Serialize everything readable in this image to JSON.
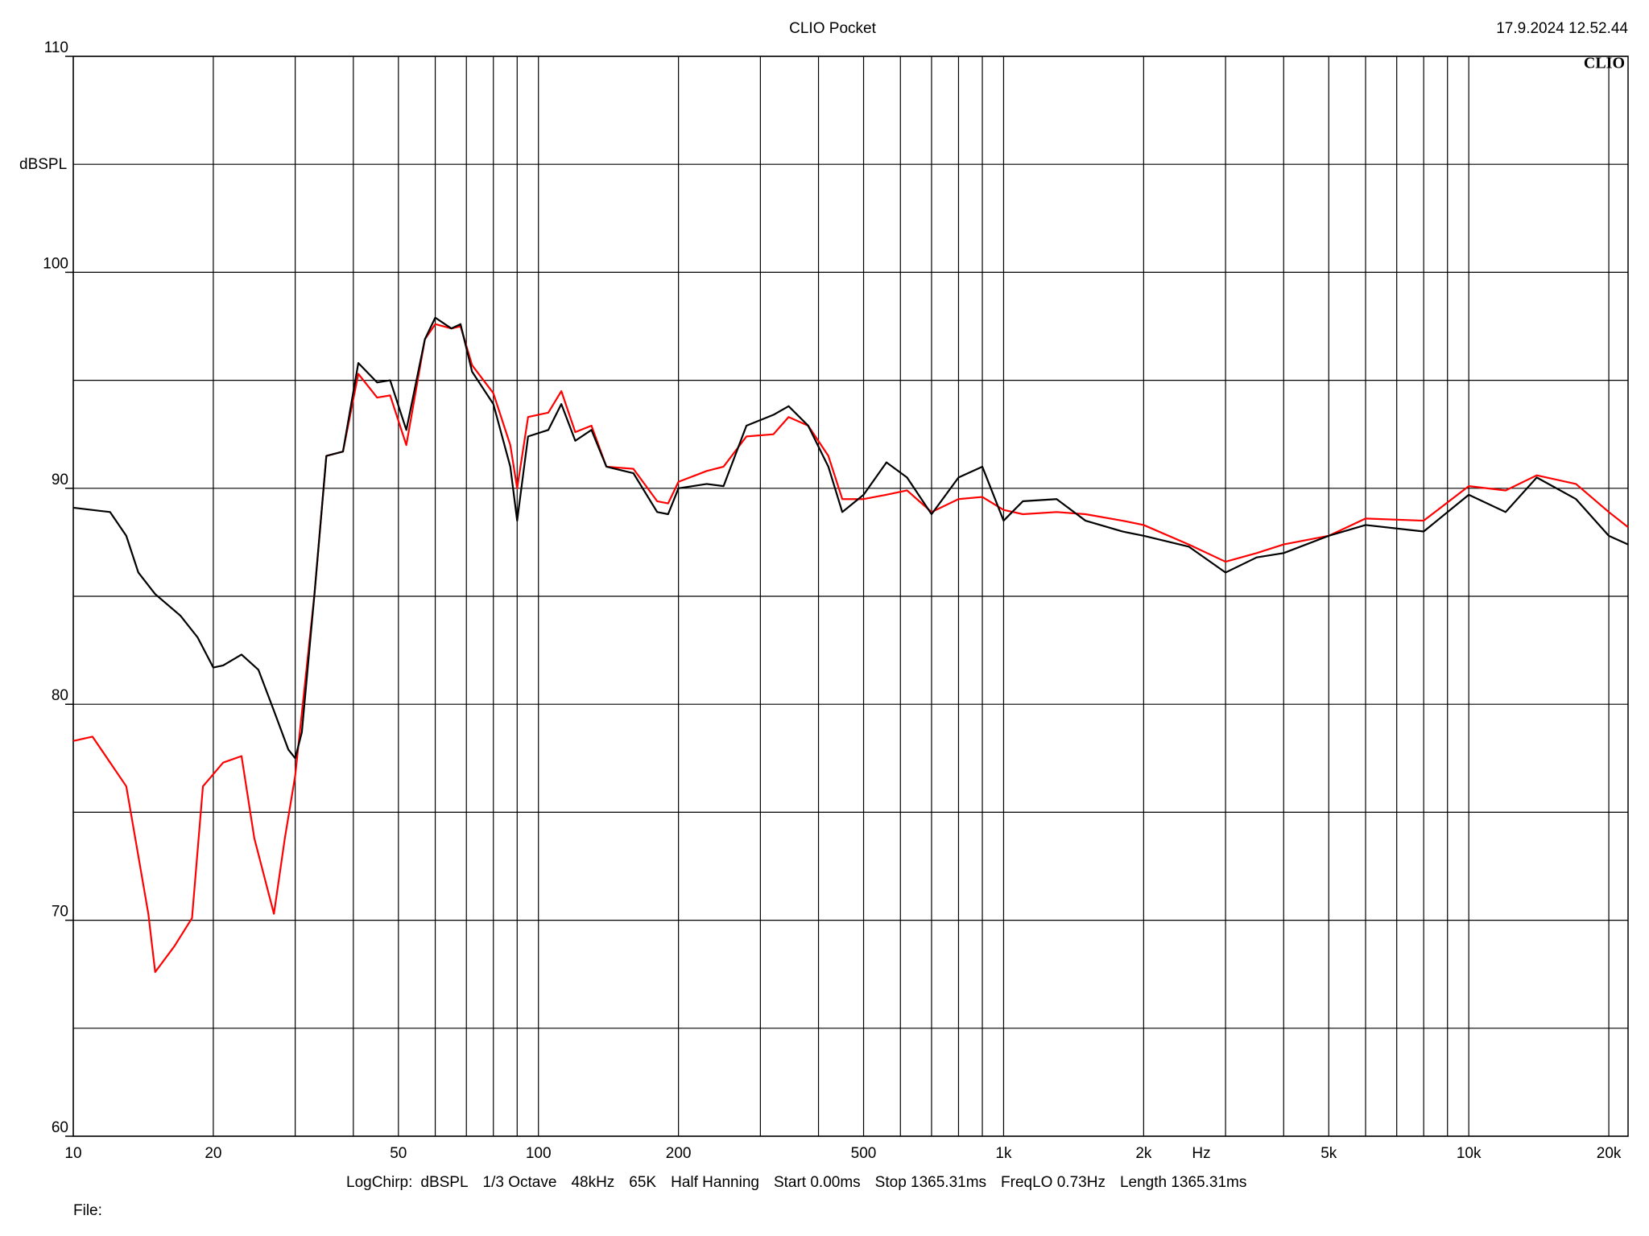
{
  "chart_data": {
    "type": "line",
    "title": "CLIO Pocket",
    "timestamp": "17.9.2024 12.52.44",
    "logo": "CLIO",
    "ylabel": "dBSPL",
    "xlabel": "Hz",
    "xscale": "log",
    "grid": true,
    "xlim": [
      10,
      22000
    ],
    "ylim": [
      60,
      110
    ],
    "xticks": [
      10,
      20,
      50,
      100,
      200,
      500,
      {
        "value": 1000,
        "label": "1k"
      },
      {
        "value": 2000,
        "label": "2k"
      },
      {
        "value": 5000,
        "label": "5k"
      },
      {
        "value": 10000,
        "label": "10k"
      },
      {
        "value": 20000,
        "label": "20k"
      }
    ],
    "xminorticks": [
      30,
      40,
      60,
      70,
      80,
      90,
      300,
      400,
      600,
      700,
      800,
      900,
      3000,
      4000,
      6000,
      7000,
      8000,
      9000
    ],
    "yticks": [
      60,
      70,
      80,
      90,
      100,
      110
    ],
    "yminorticks": [
      65,
      75,
      85,
      95,
      105
    ],
    "series": [
      {
        "color": "#000000",
        "x": [
          10,
          12,
          13,
          13.8,
          15,
          17,
          18.5,
          20,
          21,
          23,
          25,
          27,
          29,
          30,
          31,
          33,
          35,
          38,
          41,
          45,
          48,
          52,
          57,
          60,
          65,
          68,
          72,
          80,
          87,
          90,
          95,
          105,
          112,
          120,
          130,
          140,
          160,
          180,
          190,
          200,
          230,
          250,
          280,
          320,
          345,
          380,
          420,
          450,
          500,
          560,
          620,
          700,
          800,
          900,
          1000,
          1100,
          1300,
          1500,
          1800,
          2000,
          2500,
          3000,
          3500,
          4000,
          5000,
          6000,
          8000,
          10000,
          12000,
          14000,
          17000,
          20000,
          22000
        ],
        "values": [
          89.1,
          88.9,
          87.8,
          86.1,
          85.1,
          84.1,
          83.1,
          81.7,
          81.8,
          82.3,
          81.6,
          79.7,
          77.9,
          77.5,
          78.7,
          85.1,
          91.5,
          91.7,
          95.8,
          94.9,
          95.0,
          92.7,
          96.9,
          97.9,
          97.4,
          97.6,
          95.4,
          93.9,
          91.0,
          88.5,
          92.4,
          92.7,
          93.9,
          92.2,
          92.7,
          91.0,
          90.7,
          88.9,
          88.8,
          90.0,
          90.2,
          90.1,
          92.9,
          93.4,
          93.8,
          92.9,
          91.0,
          88.9,
          89.7,
          91.2,
          90.5,
          88.8,
          90.5,
          91.0,
          88.5,
          89.4,
          89.5,
          88.5,
          88.0,
          87.8,
          87.3,
          86.1,
          86.8,
          87.0,
          87.8,
          88.3,
          88.0,
          89.7,
          88.9,
          90.5,
          89.5,
          87.8,
          87.4
        ]
      },
      {
        "color": "#ff0000",
        "x": [
          10,
          11,
          13,
          14.5,
          15,
          16.5,
          18,
          19,
          21,
          23,
          24.5,
          27,
          28.5,
          30,
          33,
          35,
          38,
          41,
          45,
          48,
          52,
          57,
          60,
          65,
          68,
          72,
          80,
          87,
          90,
          95,
          105,
          112,
          120,
          130,
          140,
          160,
          180,
          190,
          200,
          230,
          250,
          280,
          320,
          345,
          380,
          420,
          450,
          500,
          560,
          620,
          700,
          800,
          900,
          1000,
          1100,
          1300,
          1500,
          1800,
          2000,
          2500,
          3000,
          3500,
          4000,
          5000,
          6000,
          8000,
          10000,
          12000,
          14000,
          17000,
          20000,
          22000
        ],
        "values": [
          78.3,
          78.5,
          76.2,
          70.3,
          67.6,
          68.8,
          70.1,
          76.2,
          77.3,
          77.6,
          73.8,
          70.3,
          73.8,
          76.7,
          85.1,
          91.5,
          91.7,
          95.3,
          94.2,
          94.3,
          92.0,
          96.9,
          97.6,
          97.4,
          97.5,
          95.7,
          94.4,
          92.0,
          90.0,
          93.3,
          93.5,
          94.5,
          92.6,
          92.9,
          91.0,
          90.9,
          89.4,
          89.3,
          90.3,
          90.8,
          91.0,
          92.4,
          92.5,
          93.3,
          92.9,
          91.5,
          89.5,
          89.5,
          89.7,
          89.9,
          88.9,
          89.5,
          89.6,
          89.0,
          88.8,
          88.9,
          88.8,
          88.5,
          88.3,
          87.4,
          86.6,
          87.0,
          87.4,
          87.8,
          88.6,
          88.5,
          90.1,
          89.9,
          90.6,
          90.2,
          88.9,
          88.2
        ]
      }
    ],
    "footer": [
      "LogChirp:",
      "dBSPL",
      "1/3 Octave",
      "48kHz",
      "65K",
      "Half Hanning",
      "Start 0.00ms",
      "Stop 1365.31ms",
      "FreqLO 0.73Hz",
      "Length 1365.31ms"
    ],
    "file_label": "File:"
  }
}
